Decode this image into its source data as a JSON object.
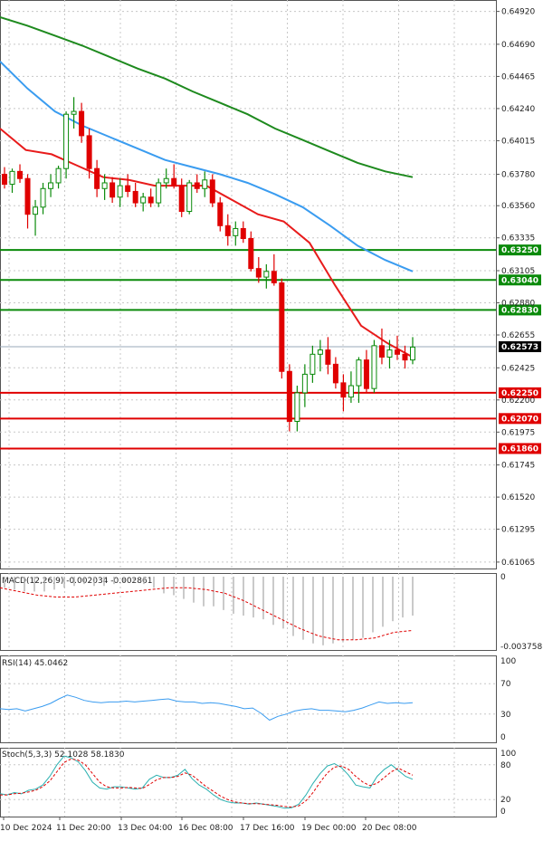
{
  "chart_data": [
    {
      "type": "candlestick",
      "panel": "price",
      "y_ticks": [
        "0.64920",
        "0.64690",
        "0.64465",
        "0.64240",
        "0.64015",
        "0.63780",
        "0.63560",
        "0.63335",
        "0.63105",
        "0.62880",
        "0.62655",
        "0.62425",
        "0.62200",
        "0.61975",
        "0.61745",
        "0.61520",
        "0.61295",
        "0.61065"
      ],
      "ylim": [
        0.6102,
        0.65
      ],
      "current_price": {
        "label": "0.62573",
        "value": 0.62573
      },
      "levels": [
        {
          "label": "0.63250",
          "value": 0.6325,
          "color": "#0a8a0a"
        },
        {
          "label": "0.63040",
          "value": 0.6304,
          "color": "#0a8a0a"
        },
        {
          "label": "0.62830",
          "value": 0.6283,
          "color": "#0a8a0a"
        },
        {
          "label": "0.62250",
          "value": 0.6225,
          "color": "#e00000"
        },
        {
          "label": "0.62070",
          "value": 0.6207,
          "color": "#e00000"
        },
        {
          "label": "0.61860",
          "value": 0.6186,
          "color": "#e00000"
        }
      ],
      "candles": [
        [
          0.6378,
          0.6383,
          0.6368,
          0.6371
        ],
        [
          0.6371,
          0.6382,
          0.6365,
          0.638
        ],
        [
          0.638,
          0.6385,
          0.6372,
          0.6375
        ],
        [
          0.6375,
          0.6378,
          0.634,
          0.635
        ],
        [
          0.635,
          0.636,
          0.6335,
          0.6355
        ],
        [
          0.6355,
          0.6372,
          0.635,
          0.6368
        ],
        [
          0.6368,
          0.6378,
          0.6362,
          0.6372
        ],
        [
          0.6372,
          0.6384,
          0.6368,
          0.6382
        ],
        [
          0.6382,
          0.6422,
          0.6375,
          0.642
        ],
        [
          0.642,
          0.6432,
          0.641,
          0.6422
        ],
        [
          0.6422,
          0.6428,
          0.64,
          0.6405
        ],
        [
          0.6405,
          0.641,
          0.6375,
          0.6382
        ],
        [
          0.6382,
          0.6388,
          0.6362,
          0.6368
        ],
        [
          0.6368,
          0.6378,
          0.636,
          0.6372
        ],
        [
          0.6372,
          0.6376,
          0.6358,
          0.6362
        ],
        [
          0.6362,
          0.6375,
          0.6355,
          0.637
        ],
        [
          0.637,
          0.6378,
          0.6362,
          0.6366
        ],
        [
          0.6366,
          0.6372,
          0.6355,
          0.6358
        ],
        [
          0.6358,
          0.6365,
          0.6352,
          0.6362
        ],
        [
          0.6362,
          0.6368,
          0.6355,
          0.6358
        ],
        [
          0.6358,
          0.6375,
          0.6355,
          0.6372
        ],
        [
          0.6372,
          0.6382,
          0.6368,
          0.6375
        ],
        [
          0.6375,
          0.6385,
          0.6368,
          0.637
        ],
        [
          0.637,
          0.6375,
          0.6348,
          0.6352
        ],
        [
          0.6352,
          0.6374,
          0.635,
          0.6372
        ],
        [
          0.6372,
          0.6378,
          0.6365,
          0.6368
        ],
        [
          0.6368,
          0.638,
          0.6362,
          0.6374
        ],
        [
          0.6374,
          0.6378,
          0.6355,
          0.6358
        ],
        [
          0.6358,
          0.6362,
          0.6338,
          0.6342
        ],
        [
          0.6342,
          0.635,
          0.6328,
          0.6335
        ],
        [
          0.6335,
          0.6345,
          0.6328,
          0.634
        ],
        [
          0.634,
          0.6345,
          0.633,
          0.6333
        ],
        [
          0.6333,
          0.6338,
          0.631,
          0.6312
        ],
        [
          0.6312,
          0.632,
          0.6302,
          0.6306
        ],
        [
          0.6306,
          0.6315,
          0.6298,
          0.631
        ],
        [
          0.631,
          0.6322,
          0.63,
          0.6302
        ],
        [
          0.6302,
          0.6305,
          0.6235,
          0.624
        ],
        [
          0.624,
          0.6245,
          0.6198,
          0.6205
        ],
        [
          0.6205,
          0.623,
          0.6198,
          0.6225
        ],
        [
          0.6225,
          0.6245,
          0.6215,
          0.6238
        ],
        [
          0.6238,
          0.6258,
          0.6232,
          0.6252
        ],
        [
          0.6252,
          0.6262,
          0.624,
          0.6255
        ],
        [
          0.6255,
          0.6264,
          0.6238,
          0.6245
        ],
        [
          0.6245,
          0.625,
          0.6228,
          0.6232
        ],
        [
          0.6232,
          0.6238,
          0.6212,
          0.6222
        ],
        [
          0.6222,
          0.624,
          0.6218,
          0.623
        ],
        [
          0.623,
          0.625,
          0.6218,
          0.6248
        ],
        [
          0.6248,
          0.6255,
          0.6225,
          0.6228
        ],
        [
          0.6228,
          0.6262,
          0.6225,
          0.6258
        ],
        [
          0.6258,
          0.627,
          0.6245,
          0.625
        ],
        [
          0.625,
          0.6262,
          0.6242,
          0.6255
        ],
        [
          0.6255,
          0.6265,
          0.6248,
          0.6252
        ],
        [
          0.6252,
          0.6258,
          0.6242,
          0.6248
        ],
        [
          0.6248,
          0.6264,
          0.6245,
          0.6257
        ]
      ],
      "ma_slow": [
        0.6488,
        0.6482,
        0.6475,
        0.6468,
        0.646,
        0.6452,
        0.6445,
        0.6436,
        0.6428,
        0.642,
        0.641,
        0.6402,
        0.6394,
        0.6386,
        0.638,
        0.6376
      ],
      "ma_mid": [
        0.6457,
        0.6438,
        0.6422,
        0.6412,
        0.6404,
        0.6396,
        0.6388,
        0.6383,
        0.6378,
        0.6372,
        0.6364,
        0.6355,
        0.6342,
        0.6328,
        0.6318,
        0.631
      ],
      "ma_fast": [
        0.641,
        0.6395,
        0.6392,
        0.6384,
        0.6376,
        0.6374,
        0.637,
        0.637,
        0.637,
        0.636,
        0.635,
        0.6345,
        0.633,
        0.63,
        0.6272,
        0.626,
        0.625
      ]
    },
    {
      "type": "histogram",
      "panel": "macd",
      "title": "MACD(12,26,9) -0.002034 -0.002861",
      "y_ticks": [
        "0",
        "-0.003758"
      ],
      "ylim": [
        -0.003758,
        0.0
      ],
      "histogram": [
        -0.0006,
        -0.0007,
        -0.0008,
        -0.0008,
        -0.0008,
        -0.0007,
        -0.0006,
        -0.0005,
        -0.0004,
        -0.0005,
        -0.0005,
        -0.0004,
        -0.0003,
        -0.0003,
        -0.0004,
        -0.0006,
        -0.0009,
        -0.001,
        -0.0012,
        -0.0014,
        -0.0016,
        -0.0016,
        -0.0018,
        -0.002,
        -0.0021,
        -0.0022,
        -0.0023,
        -0.0026,
        -0.0028,
        -0.0032,
        -0.0034,
        -0.0036,
        -0.0037,
        -0.0036,
        -0.0035,
        -0.0034,
        -0.0033,
        -0.003,
        -0.0027,
        -0.0024,
        -0.0022,
        -0.0021
      ],
      "signal": [
        -0.0006,
        -0.0008,
        -0.001,
        -0.0011,
        -0.0011,
        -0.001,
        -0.0009,
        -0.0008,
        -0.0007,
        -0.0006,
        -0.0006,
        -0.0007,
        -0.0009,
        -0.0013,
        -0.0018,
        -0.0023,
        -0.0028,
        -0.0032,
        -0.0034,
        -0.0034,
        -0.0033,
        -0.003,
        -0.0029
      ]
    },
    {
      "type": "line",
      "panel": "rsi",
      "title": "RSI(14) 45.0462",
      "y_ticks": [
        "100",
        "70",
        "30",
        "0"
      ],
      "ylim": [
        0,
        100
      ],
      "values": [
        37,
        36,
        37,
        34,
        37,
        40,
        44,
        50,
        55,
        52,
        48,
        46,
        45,
        46,
        46,
        47,
        46,
        47,
        48,
        49,
        50,
        47,
        46,
        46,
        44,
        45,
        44,
        42,
        40,
        37,
        38,
        31,
        22,
        27,
        30,
        34,
        36,
        37,
        35,
        35,
        34,
        33,
        35,
        38,
        42,
        46,
        44,
        45,
        44,
        45
      ]
    },
    {
      "type": "line",
      "panel": "stoch",
      "title": "Stoch(5,3,3) 52.1028 58.1830",
      "y_ticks": [
        "100",
        "80",
        "20",
        "0"
      ],
      "ylim": [
        0,
        100
      ],
      "k": [
        30,
        28,
        32,
        30,
        36,
        38,
        45,
        60,
        80,
        95,
        92,
        85,
        70,
        50,
        40,
        38,
        42,
        42,
        40,
        38,
        40,
        55,
        62,
        58,
        58,
        62,
        72,
        56,
        45,
        38,
        28,
        20,
        16,
        14,
        14,
        12,
        14,
        12,
        10,
        8,
        5,
        6,
        12,
        28,
        48,
        65,
        78,
        82,
        75,
        62,
        45,
        42,
        40,
        60,
        72,
        80,
        70,
        60,
        55
      ],
      "d": [
        28,
        28,
        30,
        31,
        33,
        36,
        42,
        52,
        68,
        84,
        90,
        88,
        80,
        65,
        50,
        42,
        40,
        40,
        41,
        40,
        39,
        46,
        54,
        58,
        58,
        60,
        66,
        62,
        52,
        42,
        34,
        26,
        20,
        16,
        14,
        13,
        13,
        12,
        11,
        10,
        8,
        7,
        9,
        18,
        32,
        50,
        66,
        76,
        78,
        72,
        60,
        50,
        44,
        48,
        58,
        68,
        74,
        68,
        62
      ]
    }
  ],
  "x_axis": {
    "labels": [
      "10 Dec 2024",
      "11 Dec 20:00",
      "13 Dec 04:00",
      "16 Dec 08:00",
      "17 Dec 16:00",
      "19 Dec 00:00",
      "20 Dec 08:00"
    ]
  },
  "colors": {
    "bull": "#0a8a0a",
    "bear": "#e00000",
    "ma_slow": "#1e8a1e",
    "ma_mid": "#3a9cf0",
    "ma_fast": "#e81b1b",
    "macd_hist": "#b4b4b4",
    "macd_signal": "#e00000",
    "rsi": "#3a9cf0",
    "stoch_k": "#2ab0b0",
    "stoch_d": "#e00000"
  }
}
